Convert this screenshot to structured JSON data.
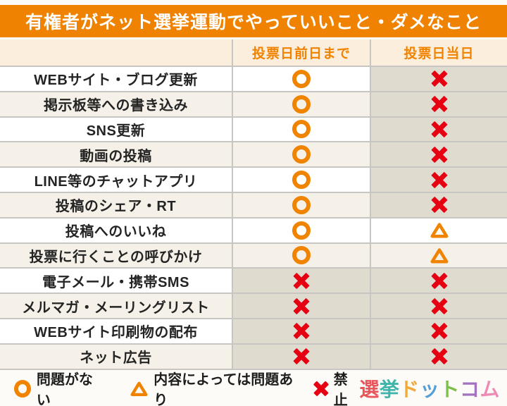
{
  "chart_data": {
    "type": "table",
    "title": "有権者がネット選挙運動でやっていいこと・ダメなこと",
    "columns": [
      "",
      "投票日前日まで",
      "投票日当日"
    ],
    "rows": [
      [
        "WEBサイト・ブログ更新",
        "○",
        "✕"
      ],
      [
        "掲示板等への書き込み",
        "○",
        "✕"
      ],
      [
        "SNS更新",
        "○",
        "✕"
      ],
      [
        "動画の投稿",
        "○",
        "✕"
      ],
      [
        "LINE等のチャットアプリ",
        "○",
        "✕"
      ],
      [
        "投稿のシェア・RT",
        "○",
        "✕"
      ],
      [
        "投稿へのいいね",
        "○",
        "△"
      ],
      [
        "投票に行くことの呼びかけ",
        "○",
        "△"
      ],
      [
        "電子メール・携帯SMS",
        "✕",
        "✕"
      ],
      [
        "メルマガ・メーリングリスト",
        "✕",
        "✕"
      ],
      [
        "WEBサイト印刷物の配布",
        "✕",
        "✕"
      ],
      [
        "ネット広告",
        "✕",
        "✕"
      ]
    ],
    "legend": [
      {
        "symbol": "○",
        "label": "問題がない"
      },
      {
        "symbol": "△",
        "label": "内容によっては問題あり"
      },
      {
        "symbol": "✕",
        "label": "禁止"
      }
    ]
  },
  "logo": {
    "text": "選挙ドットコム",
    "chars": [
      {
        "ch": "選",
        "color": "#e8555a"
      },
      {
        "ch": "挙",
        "color": "#3fb4aa"
      },
      {
        "ch": "ド",
        "color": "#f0a93a"
      },
      {
        "ch": "ッ",
        "color": "#549fd7"
      },
      {
        "ch": "ト",
        "color": "#7cbf4a"
      },
      {
        "ch": "コ",
        "color": "#a273c1"
      },
      {
        "ch": "ム",
        "color": "#ef8ab4"
      }
    ]
  },
  "colors": {
    "title_bar": "#ef8200",
    "header_text": "#f08300",
    "header_bg": "#fceedd",
    "circle_orange": "#f08300",
    "cross_red": "#e60012",
    "row_white": "#ffffff",
    "row_beige": "#f5f1e8",
    "cross_cell_bg": "#dfdbcf",
    "grid_line": "#c8c6c2"
  }
}
